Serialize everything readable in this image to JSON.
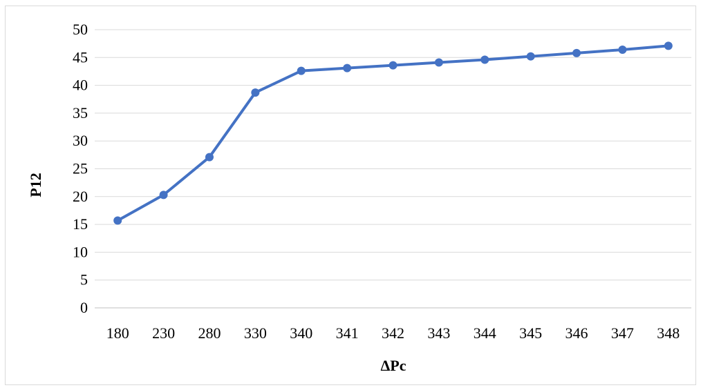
{
  "chart_data": {
    "type": "line",
    "title": "",
    "xlabel": "ΔPc",
    "ylabel": "P12",
    "categories": [
      "180",
      "230",
      "280",
      "330",
      "340",
      "341",
      "342",
      "343",
      "344",
      "345",
      "346",
      "347",
      "348"
    ],
    "series": [
      {
        "values": [
          15.7,
          20.3,
          27.1,
          38.7,
          42.6,
          43.1,
          43.6,
          44.1,
          44.6,
          45.2,
          45.8,
          46.4,
          47.1
        ]
      }
    ],
    "ylim": [
      0,
      50
    ],
    "yticks": [
      0,
      5,
      10,
      15,
      20,
      25,
      30,
      35,
      40,
      45,
      50
    ],
    "grid": "horizontal",
    "legend": "none",
    "colors": {
      "line": "#4472C4",
      "grid": "#d9d9d9",
      "axis": "#bfbfbf"
    }
  }
}
